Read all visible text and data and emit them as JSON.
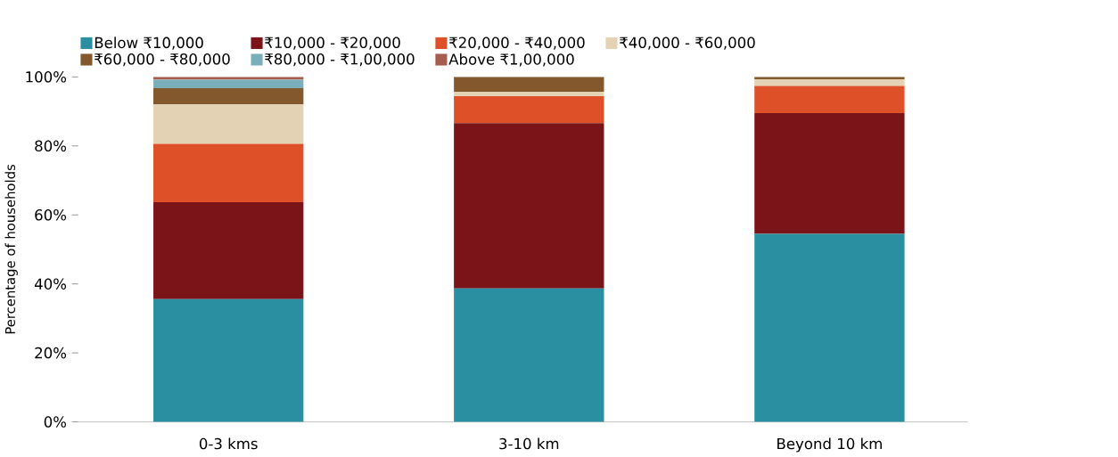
{
  "chart_data": {
    "type": "bar",
    "stacked": true,
    "ylabel": "Percentage of households",
    "categories": [
      "0-3 kms",
      "3-10 km",
      "Beyond 10 km"
    ],
    "series": [
      {
        "name": "Below ₹10,000",
        "color": "#2a8fa0",
        "values": [
          35.6,
          38.7,
          54.5
        ]
      },
      {
        "name": "₹10,000 - ₹20,000",
        "color": "#7a1418",
        "values": [
          28.1,
          47.9,
          35.0
        ]
      },
      {
        "name": "₹20,000 - ₹40,000",
        "color": "#dd5028",
        "values": [
          16.9,
          7.8,
          7.9
        ]
      },
      {
        "name": "₹40,000 - ₹60,000",
        "color": "#e3d3b4",
        "values": [
          11.4,
          1.3,
          1.9
        ]
      },
      {
        "name": "₹60,000 - ₹80,000",
        "color": "#84582d",
        "values": [
          4.7,
          4.3,
          0.7
        ]
      },
      {
        "name": "₹80,000 - ₹1,00,000",
        "color": "#7aaebb",
        "values": [
          2.5,
          0,
          0
        ]
      },
      {
        "name": "Above ₹1,00,000",
        "color": "#a45d4e",
        "values": [
          0.8,
          0,
          0
        ]
      }
    ],
    "ylim": [
      0,
      100
    ],
    "yticks": [
      {
        "value": 0,
        "label": "0%"
      },
      {
        "value": 20,
        "label": "20%"
      },
      {
        "value": 40,
        "label": "40%"
      },
      {
        "value": 60,
        "label": "60%"
      },
      {
        "value": 80,
        "label": "80%"
      },
      {
        "value": 100,
        "label": "100%"
      }
    ],
    "grid": false,
    "legend": "top"
  }
}
